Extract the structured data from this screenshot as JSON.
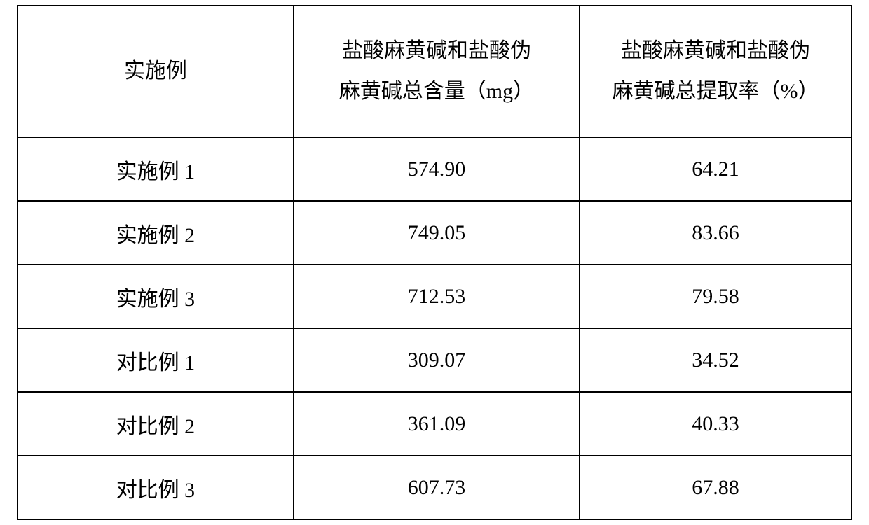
{
  "table": {
    "border_color": "#000000",
    "background_color": "#ffffff",
    "text_color": "#000000",
    "header_fontsize": 30,
    "body_fontsize": 30,
    "columns": [
      {
        "lines": [
          "实施例"
        ]
      },
      {
        "lines": [
          "盐酸麻黄碱和盐酸伪",
          "麻黄碱总含量（mg）"
        ]
      },
      {
        "lines": [
          "盐酸麻黄碱和盐酸伪",
          "麻黄碱总提取率（%）"
        ]
      }
    ],
    "rows": [
      {
        "label": "实施例 1",
        "content_mg": "574.90",
        "rate_pct": "64.21"
      },
      {
        "label": "实施例 2",
        "content_mg": "749.05",
        "rate_pct": "83.66"
      },
      {
        "label": "实施例 3",
        "content_mg": "712.53",
        "rate_pct": "79.58"
      },
      {
        "label": "对比例 1",
        "content_mg": "309.07",
        "rate_pct": "34.52"
      },
      {
        "label": "对比例 2",
        "content_mg": "361.09",
        "rate_pct": "40.33"
      },
      {
        "label": "对比例 3",
        "content_mg": "607.73",
        "rate_pct": "67.88"
      }
    ]
  }
}
